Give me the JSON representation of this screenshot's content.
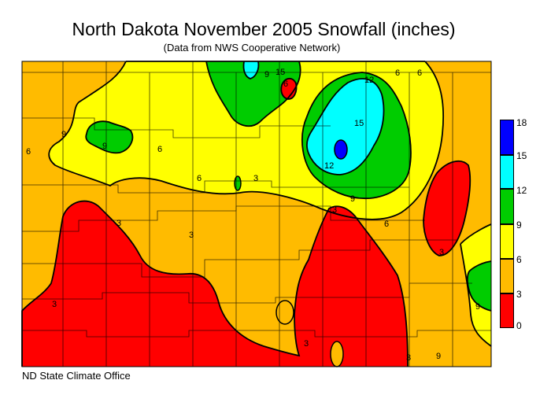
{
  "title": "North Dakota November 2005 Snowfall (inches)",
  "subtitle": "(Data from NWS Cooperative Network)",
  "credit": "ND State Climate Office",
  "legend": {
    "classes": [
      {
        "min": 15,
        "max": 18,
        "color": "#0000ff"
      },
      {
        "min": 12,
        "max": 15,
        "color": "#00ffff"
      },
      {
        "min": 9,
        "max": 12,
        "color": "#00cc00"
      },
      {
        "min": 6,
        "max": 9,
        "color": "#ffff00"
      },
      {
        "min": 3,
        "max": 6,
        "color": "#ffbb00"
      },
      {
        "min": 0,
        "max": 3,
        "color": "#ff0000"
      }
    ],
    "labels": [
      "18",
      "15",
      "12",
      "9",
      "6",
      "3",
      "0"
    ]
  },
  "contour_labels": [
    "3",
    "3",
    "3",
    "3",
    "3",
    "3",
    "3",
    "3",
    "6",
    "6",
    "6",
    "6",
    "6",
    "6",
    "6",
    "9",
    "9",
    "9",
    "9",
    "9",
    "9",
    "12",
    "12",
    "15",
    "15"
  ]
}
